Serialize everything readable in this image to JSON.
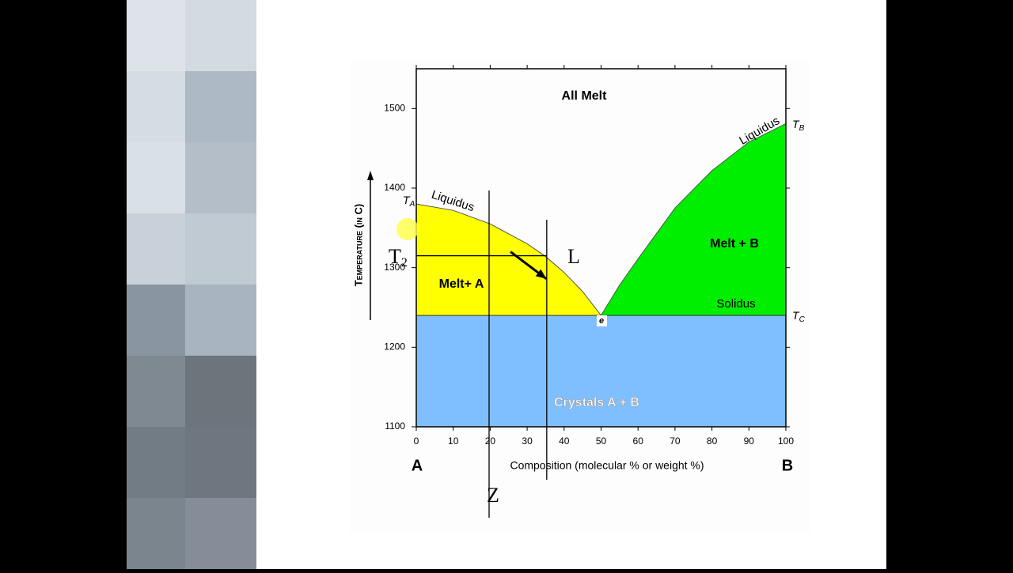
{
  "chart_data": {
    "type": "phase",
    "y_label": "Temperature (in C)",
    "x_label": "Composition (molecular % or weight %)",
    "end_labels": [
      "A",
      "B"
    ],
    "xlim": [
      0,
      100
    ],
    "xticks": [
      0,
      10,
      20,
      30,
      40,
      50,
      60,
      70,
      80,
      90,
      100
    ],
    "ylim": [
      1100,
      1550
    ],
    "yticks": [
      1100,
      1200,
      1300,
      1400,
      1500
    ],
    "regions": [
      "All Melt",
      "Melt+ A",
      "Melt + B",
      "Crystals A + B"
    ],
    "curves": [
      {
        "name": "Liquidus",
        "color": "#ffff00",
        "x": [
          0,
          10,
          20,
          30,
          35,
          40,
          45,
          50
        ],
        "values": [
          1380,
          1372,
          1355,
          1330,
          1314,
          1294,
          1270,
          1240
        ]
      },
      {
        "name": "Liquidus",
        "color": "#00ee00",
        "x": [
          50,
          55,
          60,
          70,
          80,
          90,
          100
        ],
        "values": [
          1240,
          1278,
          1311,
          1375,
          1422,
          1458,
          1481
        ]
      }
    ],
    "solidus": {
      "name": "Solidus",
      "value": 1240,
      "color": "#80bfff"
    },
    "points": [
      {
        "label": "T",
        "sub": "A"
      },
      {
        "label": "T",
        "sub": "B"
      },
      {
        "label": "T",
        "sub": "C"
      },
      {
        "label": "e"
      }
    ],
    "annotations": {
      "vertical_x": [
        19.7,
        35.3
      ],
      "horizontal": {
        "y": 1315,
        "x": [
          0,
          35.3
        ]
      },
      "arrow": {
        "x": [
          25.5,
          35.2
        ],
        "y": [
          1320,
          1286
        ]
      },
      "labels": [
        {
          "label": "T",
          "sub": "2"
        },
        {
          "label": "L"
        },
        {
          "label": "Z"
        }
      ]
    }
  }
}
